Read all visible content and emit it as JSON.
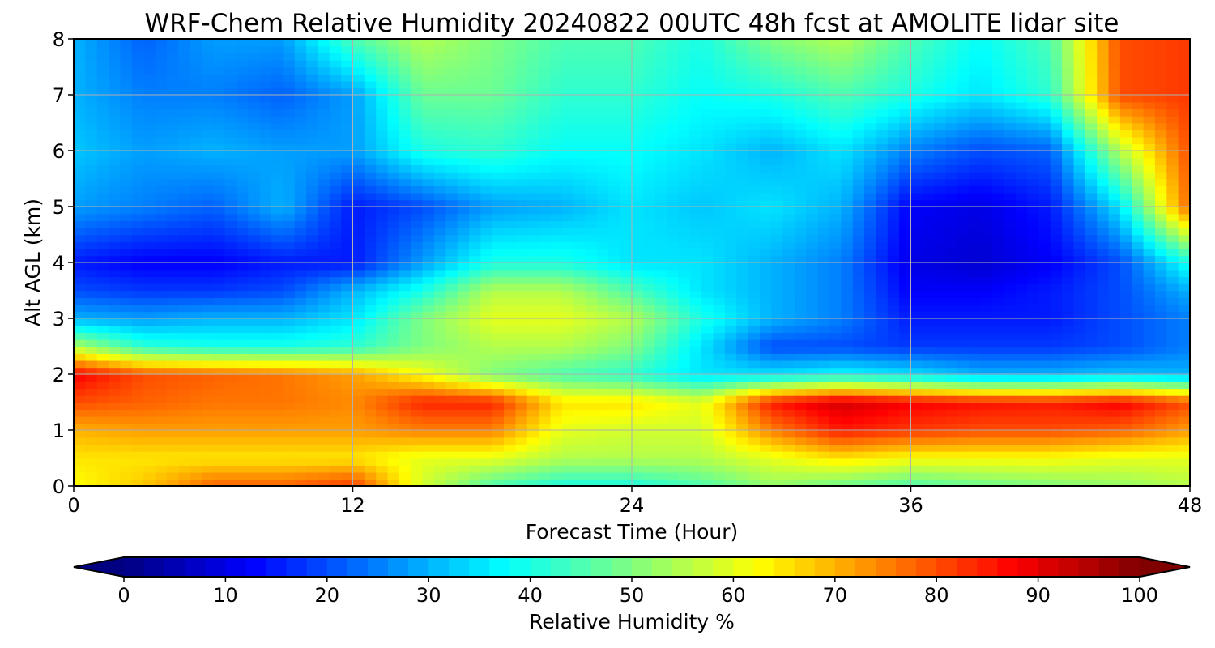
{
  "chart_data": {
    "type": "heatmap",
    "title": "WRF-Chem Relative Humidity 20240822 00UTC 48h fcst at AMOLITE lidar site",
    "xlabel": "Forecast Time (Hour)",
    "ylabel": "Alt AGL (km)",
    "xlim": [
      0,
      48
    ],
    "ylim": [
      0,
      8
    ],
    "xticks": [
      "0",
      "12",
      "24",
      "36",
      "48"
    ],
    "yticks": [
      "0",
      "1",
      "2",
      "3",
      "4",
      "5",
      "6",
      "7",
      "8"
    ],
    "grid": true,
    "colorscale": "jet",
    "colorbar": {
      "label": "Relative Humidity %",
      "range": [
        0,
        100
      ],
      "ticks": [
        "0",
        "10",
        "20",
        "30",
        "40",
        "50",
        "60",
        "70",
        "80",
        "90",
        "100"
      ],
      "orientation": "horizontal",
      "extend": "both"
    },
    "x": [
      0,
      3,
      6,
      9,
      12,
      15,
      18,
      21,
      24,
      27,
      30,
      33,
      36,
      39,
      42,
      45,
      48
    ],
    "y": [
      0,
      0.5,
      1,
      1.5,
      2,
      2.5,
      3,
      3.5,
      4,
      5,
      6,
      7,
      8
    ],
    "z": [
      [
        62,
        68,
        78,
        78,
        82,
        58,
        45,
        40,
        40,
        45,
        52,
        48,
        45,
        48,
        50,
        52,
        55
      ],
      [
        65,
        65,
        65,
        65,
        65,
        60,
        60,
        55,
        55,
        55,
        60,
        65,
        62,
        62,
        62,
        60,
        60
      ],
      [
        70,
        72,
        72,
        72,
        72,
        75,
        75,
        60,
        58,
        58,
        75,
        85,
        82,
        80,
        80,
        78,
        72
      ],
      [
        80,
        78,
        76,
        76,
        74,
        84,
        84,
        65,
        65,
        60,
        85,
        92,
        88,
        86,
        85,
        88,
        80
      ],
      [
        88,
        80,
        78,
        76,
        72,
        62,
        50,
        45,
        42,
        35,
        35,
        38,
        35,
        30,
        30,
        32,
        30
      ],
      [
        55,
        42,
        40,
        40,
        42,
        50,
        55,
        55,
        50,
        35,
        20,
        20,
        18,
        18,
        18,
        20,
        25
      ],
      [
        30,
        28,
        30,
        30,
        35,
        50,
        60,
        60,
        55,
        40,
        30,
        25,
        15,
        15,
        15,
        20,
        25
      ],
      [
        20,
        18,
        18,
        20,
        30,
        40,
        55,
        55,
        45,
        35,
        30,
        25,
        12,
        12,
        15,
        20,
        30
      ],
      [
        15,
        12,
        12,
        15,
        15,
        28,
        40,
        40,
        35,
        35,
        30,
        25,
        10,
        8,
        12,
        20,
        40
      ],
      [
        28,
        25,
        22,
        30,
        15,
        20,
        28,
        30,
        35,
        32,
        35,
        30,
        12,
        10,
        15,
        35,
        78
      ],
      [
        32,
        28,
        30,
        28,
        28,
        40,
        42,
        38,
        38,
        35,
        30,
        35,
        25,
        20,
        22,
        55,
        80
      ],
      [
        30,
        25,
        25,
        22,
        28,
        48,
        48,
        42,
        42,
        38,
        40,
        45,
        40,
        35,
        42,
        80,
        82
      ],
      [
        30,
        22,
        28,
        28,
        45,
        55,
        50,
        45,
        45,
        40,
        50,
        55,
        45,
        38,
        45,
        80,
        82
      ]
    ]
  }
}
